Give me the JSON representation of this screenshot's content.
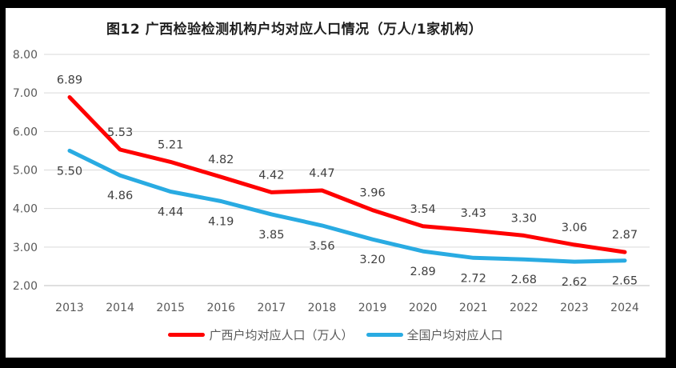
{
  "chart_data": {
    "type": "line",
    "title": "图12 广西检验检测机构户均对应人口情况（万人/1家机构）",
    "categories": [
      "2013",
      "2014",
      "2015",
      "2016",
      "2017",
      "2018",
      "2019",
      "2020",
      "2021",
      "2022",
      "2023",
      "2024"
    ],
    "series": [
      {
        "name": "广西户均对应人口（万人）",
        "color": "#FF0000",
        "values": [
          6.89,
          5.53,
          5.21,
          4.82,
          4.42,
          4.47,
          3.96,
          3.54,
          3.43,
          3.3,
          3.06,
          2.87
        ],
        "label_position": "above"
      },
      {
        "name": "全国户均对应人口",
        "color": "#29ABE2",
        "values": [
          5.5,
          4.86,
          4.44,
          4.19,
          3.85,
          3.56,
          3.2,
          2.89,
          2.72,
          2.68,
          2.62,
          2.65
        ],
        "label_position": "below"
      }
    ],
    "y_axis": {
      "min": 2,
      "max": 8,
      "tick_step": 1,
      "tick_labels": [
        "2.00",
        "3.00",
        "4.00",
        "5.00",
        "6.00",
        "7.00",
        "8.00"
      ]
    },
    "x_axis": {
      "label": ""
    },
    "grid": true,
    "legend_position": "bottom",
    "styles": {
      "gridline_color": "#D9D9D9",
      "baseline_color": "#BFBFBF",
      "axis_label_color": "#595959",
      "data_label_color": "#404040",
      "title_color": "#1f1f1f",
      "frame_color": "#000000"
    }
  }
}
